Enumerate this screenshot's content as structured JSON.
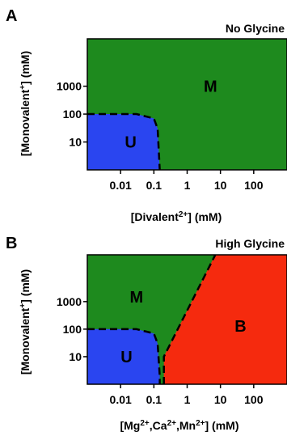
{
  "chart_data": [
    {
      "type": "phase-diagram",
      "panel": "A",
      "title": "No Glycine",
      "xlabel": "[Divalent²⁺]  (mM)",
      "xlabel_parts": {
        "pre": "[Divalent",
        "sup": "2+",
        "post": "]  (mM)"
      },
      "ylabel": "[Monovalent⁺]  (mM)",
      "ylabel_parts": {
        "pre": "[Monovalent",
        "sup": "+",
        "post": "]  (mM)"
      },
      "xscale": "log",
      "yscale": "log",
      "xlim": [
        0.001,
        1000
      ],
      "ylim": [
        1,
        50000
      ],
      "x_ticks": [
        {
          "value": 0.01,
          "label": "0.01"
        },
        {
          "value": 0.1,
          "label": "0.1"
        },
        {
          "value": 1,
          "label": "1"
        },
        {
          "value": 10,
          "label": "10"
        },
        {
          "value": 100,
          "label": "100"
        }
      ],
      "y_ticks": [
        {
          "value": 10,
          "label": "10"
        },
        {
          "value": 100,
          "label": "100"
        },
        {
          "value": 1000,
          "label": "1000"
        }
      ],
      "regions": [
        {
          "label": "M",
          "color": "#1e8a1e",
          "label_at": [
            5,
            1000
          ]
        },
        {
          "label": "U",
          "color": "#2a45f0",
          "label_at": [
            0.02,
            10
          ]
        }
      ],
      "boundaries": [
        {
          "style": "dashed",
          "points": [
            [
              0.001,
              100
            ],
            [
              0.03,
              100
            ],
            [
              0.1,
              70
            ],
            [
              0.13,
              30
            ],
            [
              0.15,
              1
            ]
          ]
        }
      ]
    },
    {
      "type": "phase-diagram",
      "panel": "B",
      "title": "High Glycine",
      "xlabel": "[Mg²⁺,Ca²⁺,Mn²⁺]  (mM)",
      "xlabel_parts": {
        "pre": "[Mg",
        "sup1": "2+",
        "mid1": ",Ca",
        "sup2": "2+",
        "mid2": ",Mn",
        "sup3": "2+",
        "post": "]  (mM)"
      },
      "ylabel": "[Monovalent⁺]  (mM)",
      "ylabel_parts": {
        "pre": "[Monovalent",
        "sup": "+",
        "post": "]  (mM)"
      },
      "xscale": "log",
      "yscale": "log",
      "xlim": [
        0.001,
        1000
      ],
      "ylim": [
        1,
        50000
      ],
      "x_ticks": [
        {
          "value": 0.01,
          "label": "0.01"
        },
        {
          "value": 0.1,
          "label": "0.1"
        },
        {
          "value": 1,
          "label": "1"
        },
        {
          "value": 10,
          "label": "10"
        },
        {
          "value": 100,
          "label": "100"
        }
      ],
      "y_ticks": [
        {
          "value": 10,
          "label": "10"
        },
        {
          "value": 100,
          "label": "100"
        },
        {
          "value": 1000,
          "label": "1000"
        }
      ],
      "regions": [
        {
          "label": "M",
          "color": "#1e8a1e",
          "label_at": [
            0.03,
            1500
          ]
        },
        {
          "label": "B",
          "color": "#f52a0e",
          "label_at": [
            40,
            130
          ]
        },
        {
          "label": "U",
          "color": "#2a45f0",
          "label_at": [
            0.015,
            10
          ]
        }
      ],
      "boundaries": [
        {
          "style": "dashed",
          "points": [
            [
              0.001,
              100
            ],
            [
              0.03,
              100
            ],
            [
              0.1,
              70
            ],
            [
              0.13,
              30
            ],
            [
              0.15,
              2
            ],
            [
              0.15,
              1
            ]
          ]
        },
        {
          "style": "dashed",
          "points": [
            [
              0.2,
              1
            ],
            [
              0.2,
              10
            ],
            [
              7,
              50000
            ]
          ]
        }
      ]
    }
  ]
}
